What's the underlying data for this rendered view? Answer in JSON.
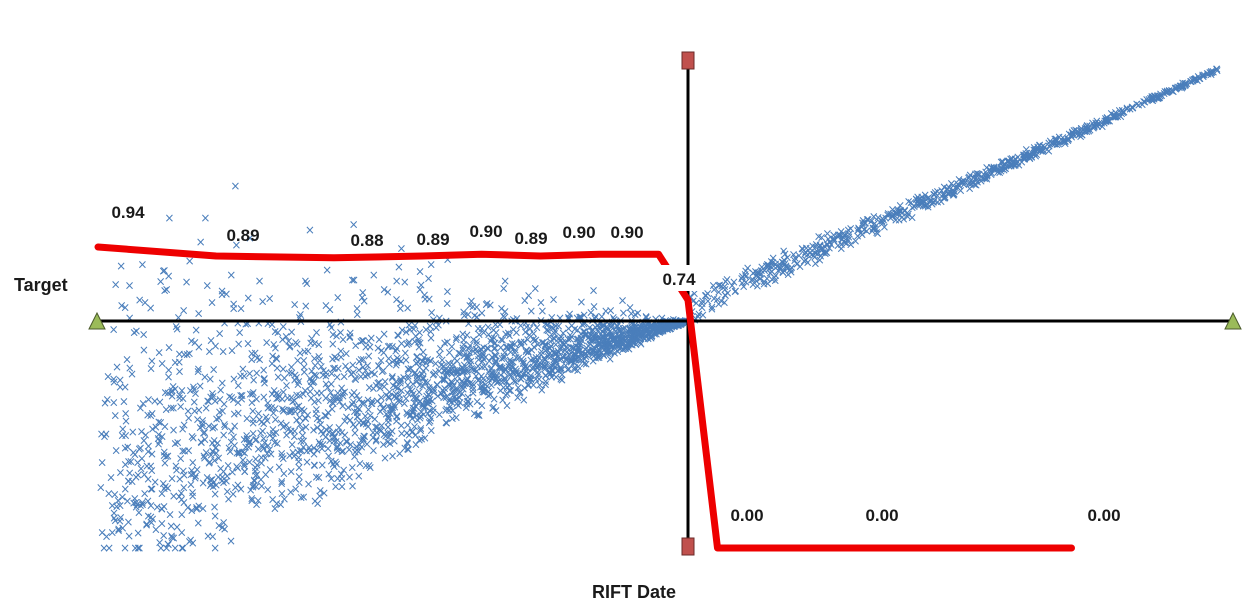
{
  "chart_data": {
    "type": "scatter",
    "title": "",
    "xlabel": "RIFT Date",
    "ylabel": "Target",
    "grid": false,
    "legend": "none",
    "colors": {
      "points": "#4a7ebb",
      "line": "#ee0000",
      "axes": "#000000",
      "marker_triangle": "#9bbb59",
      "marker_square": "#c0504d"
    },
    "line_series": {
      "x": [
        -1.0,
        -0.8,
        -0.6,
        -0.45,
        -0.35,
        -0.25,
        -0.15,
        -0.05,
        0.0,
        0.05,
        0.1,
        0.65
      ],
      "values": [
        0.94,
        0.89,
        0.88,
        0.89,
        0.9,
        0.89,
        0.9,
        0.9,
        0.74,
        0.0,
        0.0,
        0.0
      ]
    },
    "data_labels": [
      "0.94",
      "0.89",
      "0.88",
      "0.89",
      "0.90",
      "0.89",
      "0.90",
      "0.90",
      "0.74",
      "0.00",
      "0.00",
      "0.00"
    ]
  }
}
